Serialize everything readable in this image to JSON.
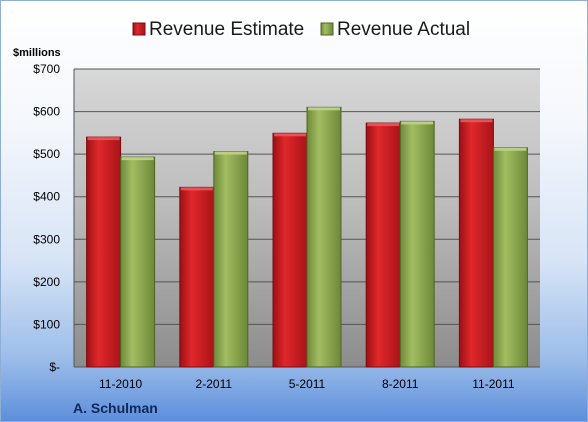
{
  "chart_data": {
    "type": "bar",
    "ylabel": "$millions",
    "categories": [
      "11-2010",
      "2-2011",
      "5-2011",
      "8-2011",
      "11-2011"
    ],
    "series": [
      {
        "name": "Revenue Estimate",
        "color": "#c8181c",
        "values": [
          540,
          422,
          549,
          573,
          582
        ]
      },
      {
        "name": "Revenue Actual",
        "color": "#8aa64e",
        "values": [
          493,
          506,
          610,
          577,
          515
        ]
      }
    ],
    "ylim": [
      0,
      700
    ],
    "yticks": [
      {
        "value": 0,
        "label": "$-"
      },
      {
        "value": 100,
        "label": "$100"
      },
      {
        "value": 200,
        "label": "$200"
      },
      {
        "value": 300,
        "label": "$300"
      },
      {
        "value": 400,
        "label": "$400"
      },
      {
        "value": 500,
        "label": "$500"
      },
      {
        "value": 600,
        "label": "$600"
      },
      {
        "value": 700,
        "label": "$700"
      }
    ],
    "grid": true,
    "legend": "top",
    "footer": "A. Schulman"
  }
}
